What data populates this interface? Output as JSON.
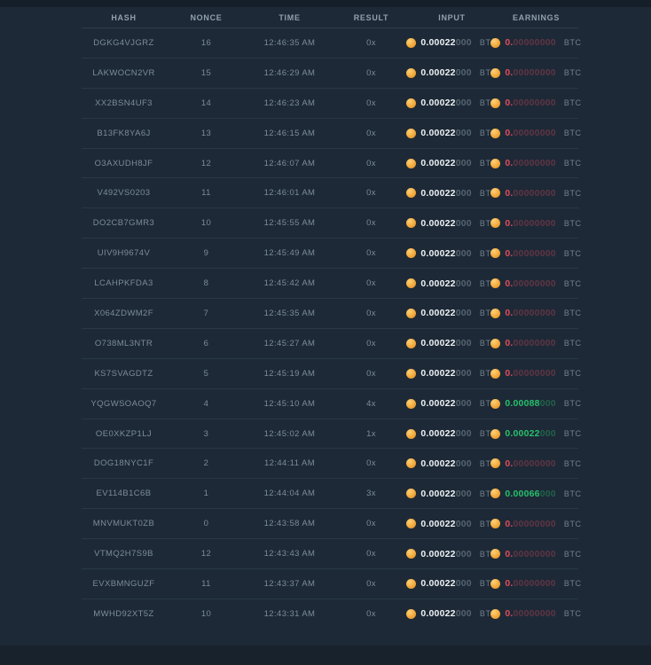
{
  "colors": {
    "background": "#1d2936",
    "coin_orange": "#f3a93c",
    "win_green": "#27c06c",
    "loss_red": "#e04b5e"
  },
  "table": {
    "columns": [
      "HASH",
      "NONCE",
      "TIME",
      "RESULT",
      "INPUT",
      "EARNINGS"
    ],
    "btc_label": "BTC",
    "rows": [
      {
        "hash": "DGKG4VJGRZ",
        "nonce": "16",
        "time": "12:46:35 AM",
        "result": "0x",
        "input_main": "0.00022",
        "input_dim": "000",
        "earn_main": "0.",
        "earn_dim": "00000000",
        "win": false
      },
      {
        "hash": "LAKWOCN2VR",
        "nonce": "15",
        "time": "12:46:29 AM",
        "result": "0x",
        "input_main": "0.00022",
        "input_dim": "000",
        "earn_main": "0.",
        "earn_dim": "00000000",
        "win": false
      },
      {
        "hash": "XX2BSN4UF3",
        "nonce": "14",
        "time": "12:46:23 AM",
        "result": "0x",
        "input_main": "0.00022",
        "input_dim": "000",
        "earn_main": "0.",
        "earn_dim": "00000000",
        "win": false
      },
      {
        "hash": "B13FK8YA6J",
        "nonce": "13",
        "time": "12:46:15 AM",
        "result": "0x",
        "input_main": "0.00022",
        "input_dim": "000",
        "earn_main": "0.",
        "earn_dim": "00000000",
        "win": false
      },
      {
        "hash": "O3AXUDH8JF",
        "nonce": "12",
        "time": "12:46:07 AM",
        "result": "0x",
        "input_main": "0.00022",
        "input_dim": "000",
        "earn_main": "0.",
        "earn_dim": "00000000",
        "win": false
      },
      {
        "hash": "V492VS0203",
        "nonce": "11",
        "time": "12:46:01 AM",
        "result": "0x",
        "input_main": "0.00022",
        "input_dim": "000",
        "earn_main": "0.",
        "earn_dim": "00000000",
        "win": false
      },
      {
        "hash": "DO2CB7GMR3",
        "nonce": "10",
        "time": "12:45:55 AM",
        "result": "0x",
        "input_main": "0.00022",
        "input_dim": "000",
        "earn_main": "0.",
        "earn_dim": "00000000",
        "win": false
      },
      {
        "hash": "UIV9H9674V",
        "nonce": "9",
        "time": "12:45:49 AM",
        "result": "0x",
        "input_main": "0.00022",
        "input_dim": "000",
        "earn_main": "0.",
        "earn_dim": "00000000",
        "win": false
      },
      {
        "hash": "LCAHPKFDA3",
        "nonce": "8",
        "time": "12:45:42 AM",
        "result": "0x",
        "input_main": "0.00022",
        "input_dim": "000",
        "earn_main": "0.",
        "earn_dim": "00000000",
        "win": false
      },
      {
        "hash": "X064ZDWM2F",
        "nonce": "7",
        "time": "12:45:35 AM",
        "result": "0x",
        "input_main": "0.00022",
        "input_dim": "000",
        "earn_main": "0.",
        "earn_dim": "00000000",
        "win": false
      },
      {
        "hash": "O738ML3NTR",
        "nonce": "6",
        "time": "12:45:27 AM",
        "result": "0x",
        "input_main": "0.00022",
        "input_dim": "000",
        "earn_main": "0.",
        "earn_dim": "00000000",
        "win": false
      },
      {
        "hash": "KS7SVAGDTZ",
        "nonce": "5",
        "time": "12:45:19 AM",
        "result": "0x",
        "input_main": "0.00022",
        "input_dim": "000",
        "earn_main": "0.",
        "earn_dim": "00000000",
        "win": false
      },
      {
        "hash": "YQGWSOAOQ7",
        "nonce": "4",
        "time": "12:45:10 AM",
        "result": "4x",
        "input_main": "0.00022",
        "input_dim": "000",
        "earn_main": "0.00088",
        "earn_dim": "000",
        "win": true
      },
      {
        "hash": "OE0XKZP1LJ",
        "nonce": "3",
        "time": "12:45:02 AM",
        "result": "1x",
        "input_main": "0.00022",
        "input_dim": "000",
        "earn_main": "0.00022",
        "earn_dim": "000",
        "win": true
      },
      {
        "hash": "DOG18NYC1F",
        "nonce": "2",
        "time": "12:44:11 AM",
        "result": "0x",
        "input_main": "0.00022",
        "input_dim": "000",
        "earn_main": "0.",
        "earn_dim": "00000000",
        "win": false
      },
      {
        "hash": "EV114B1C6B",
        "nonce": "1",
        "time": "12:44:04 AM",
        "result": "3x",
        "input_main": "0.00022",
        "input_dim": "000",
        "earn_main": "0.00066",
        "earn_dim": "000",
        "win": true
      },
      {
        "hash": "MNVMUKT0ZB",
        "nonce": "0",
        "time": "12:43:58 AM",
        "result": "0x",
        "input_main": "0.00022",
        "input_dim": "000",
        "earn_main": "0.",
        "earn_dim": "00000000",
        "win": false
      },
      {
        "hash": "VTMQ2H7S9B",
        "nonce": "12",
        "time": "12:43:43 AM",
        "result": "0x",
        "input_main": "0.00022",
        "input_dim": "000",
        "earn_main": "0.",
        "earn_dim": "00000000",
        "win": false
      },
      {
        "hash": "EVXBMNGUZF",
        "nonce": "11",
        "time": "12:43:37 AM",
        "result": "0x",
        "input_main": "0.00022",
        "input_dim": "000",
        "earn_main": "0.",
        "earn_dim": "00000000",
        "win": false
      },
      {
        "hash": "MWHD92XT5Z",
        "nonce": "10",
        "time": "12:43:31 AM",
        "result": "0x",
        "input_main": "0.00022",
        "input_dim": "000",
        "earn_main": "0.",
        "earn_dim": "00000000",
        "win": false
      }
    ]
  }
}
